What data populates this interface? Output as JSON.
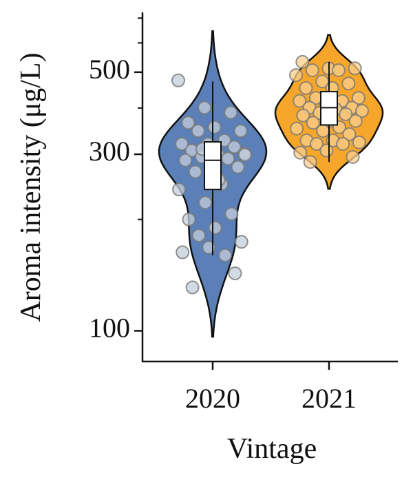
{
  "chart_data": {
    "type": "violin",
    "ylabel": "Aroma intensity (μg/L)",
    "xlabel": "Vintage",
    "categories": [
      "2020",
      "2021"
    ],
    "yscale": "log",
    "ylim": [
      90,
      710
    ],
    "yticks": [
      100,
      300,
      500
    ],
    "yminorticks": [
      200,
      400,
      600,
      700
    ],
    "series": [
      {
        "color": "#5b80b7",
        "point_color": "#c3cddb",
        "values": [
          475,
          401,
          389,
          365,
          355,
          347,
          347,
          327,
          320,
          320,
          314,
          307,
          299,
          301,
          295,
          292,
          289,
          292,
          277,
          269,
          249,
          241,
          222,
          207,
          200,
          190,
          174,
          181,
          160,
          163,
          168,
          143,
          131,
          256,
          299,
          310
        ],
        "box": {
          "whisker_low": 160,
          "q1": 241,
          "median": 289,
          "q3": 324,
          "whisker_high": 472
        }
      },
      {
        "color": "#f6a62b",
        "point_color": "#f9cf8d",
        "values": [
          533,
          512,
          512,
          506,
          506,
          491,
          472,
          466,
          453,
          453,
          426,
          426,
          418,
          418,
          409,
          401,
          401,
          397,
          393,
          388,
          385,
          382,
          369,
          369,
          365,
          355,
          352,
          347,
          340,
          327,
          327,
          323,
          320,
          320,
          303,
          307,
          295,
          286
        ],
        "box": {
          "whisker_low": 286,
          "q1": 360,
          "median": 401,
          "q3": 443,
          "whisker_high": 533
        }
      }
    ]
  }
}
